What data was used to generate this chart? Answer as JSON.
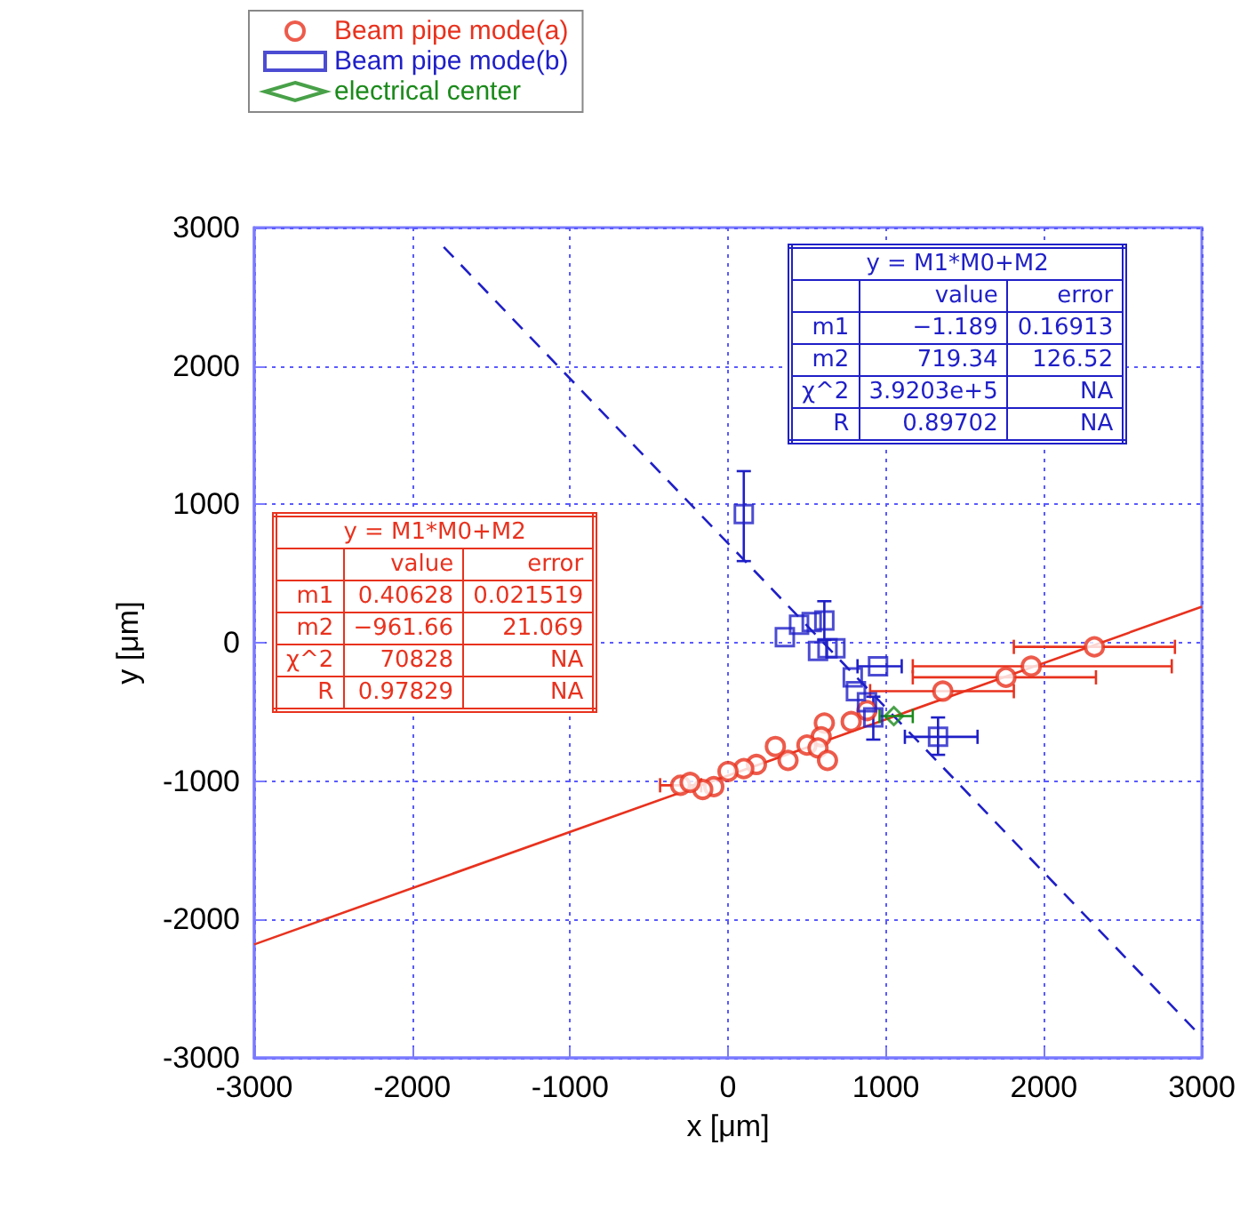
{
  "chart_data": {
    "type": "scatter",
    "xlabel": "x [μm]",
    "ylabel": "y [μm]",
    "xlim": [
      -3000,
      3000
    ],
    "ylim": [
      -3000,
      3000
    ],
    "xticks": [
      -3000,
      -2000,
      -1000,
      0,
      1000,
      2000,
      3000
    ],
    "yticks": [
      -3000,
      -2000,
      -1000,
      0,
      1000,
      2000,
      3000
    ],
    "grid": true,
    "legend": "top left",
    "series": [
      {
        "name": "Beam pipe mode(a)",
        "color": "#e8321e",
        "marker": "circle",
        "x": [
          2320,
          1920,
          1760,
          1360,
          780,
          880,
          610,
          590,
          500,
          570,
          630,
          380,
          300,
          180,
          100,
          0,
          -90,
          -160,
          -300,
          -240
        ],
        "values": [
          -30,
          -170,
          -250,
          -350,
          -570,
          -490,
          -580,
          -680,
          -740,
          -760,
          -850,
          -850,
          -750,
          -880,
          -910,
          -930,
          -1040,
          -1060,
          -1030,
          -1010
        ],
        "xerrors": [
          [
            1810,
            2830
          ],
          [
            1170,
            2810
          ],
          [
            1170,
            2330
          ],
          [
            900,
            1810
          ],
          null,
          null,
          null,
          null,
          null,
          null,
          null,
          null,
          null,
          null,
          null,
          null,
          null,
          null,
          [
            -430,
            -170
          ],
          null
        ]
      },
      {
        "name": "Beam pipe mode(b)",
        "color": "#1f1fc8",
        "marker": "square",
        "x": [
          100,
          360,
          450,
          530,
          610,
          570,
          630,
          680,
          950,
          790,
          810,
          880,
          920,
          1330
        ],
        "values": [
          930,
          40,
          130,
          150,
          160,
          -60,
          -40,
          -40,
          -170,
          -250,
          -350,
          -430,
          -540,
          -680
        ],
        "errors": [
          [
            590,
            1240
          ],
          null,
          null,
          null,
          [
            20,
            300
          ],
          null,
          null,
          null,
          null,
          null,
          null,
          null,
          [
            -700,
            -390
          ],
          [
            -810,
            -540
          ]
        ],
        "xerrors": [
          null,
          null,
          null,
          null,
          null,
          null,
          null,
          null,
          [
            820,
            1100
          ],
          null,
          null,
          null,
          null,
          [
            1120,
            1580
          ]
        ]
      },
      {
        "name": "electrical center",
        "color": "#1a8a1a",
        "marker": "diamond",
        "x": [
          1050
        ],
        "values": [
          -530
        ],
        "xerrors": [
          [
            960,
            1170
          ]
        ]
      },
      {
        "type": "line",
        "color": "#e8321e",
        "marker": "none",
        "line_style": "solid",
        "x": [
          -3000,
          3000
        ],
        "values": [
          -2180,
          260
        ]
      },
      {
        "type": "line",
        "color": "#1f1fc8",
        "marker": "none",
        "line_style": "dashed",
        "x": [
          -1800,
          3000
        ],
        "values": [
          2860,
          -2850
        ]
      }
    ],
    "annotations": [
      "y = M1*M0+M2",
      "value",
      "error",
      "m1",
      "0.40628",
      "0.021519",
      "m2",
      "−961.66",
      "21.069",
      "χ^2",
      "70828",
      "NA",
      "R",
      "0.97829",
      "NA",
      "y = M1*M0+M2",
      "value",
      "error",
      "m1",
      "−1.189",
      "0.16913",
      "m2",
      "719.34",
      "126.52",
      "χ^2",
      "3.9203e+5",
      "NA",
      "R",
      "0.89702",
      "NA"
    ]
  }
}
